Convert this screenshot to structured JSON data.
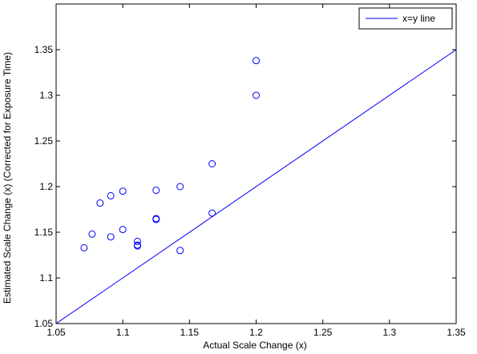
{
  "chart_data": {
    "type": "scatter",
    "title": "",
    "xlabel": "Actual Scale Change (x)",
    "ylabel": "Estimated Scale Change (x) (Corrected for Exposure Time)",
    "xlim": [
      1.05,
      1.35
    ],
    "ylim": [
      1.05,
      1.4
    ],
    "xticks": [
      "1.05",
      "1.1",
      "1.15",
      "1.2",
      "1.25",
      "1.3",
      "1.35"
    ],
    "yticks": [
      "1.05",
      "1.1",
      "1.15",
      "1.2",
      "1.25",
      "1.3",
      "1.35"
    ],
    "grid": false,
    "legend_position": "top-right",
    "series": [
      {
        "name": "",
        "kind": "scatter",
        "marker": "circle-open",
        "color": "#0000ff",
        "points": [
          [
            1.071,
            1.133
          ],
          [
            1.077,
            1.148
          ],
          [
            1.083,
            1.182
          ],
          [
            1.091,
            1.19
          ],
          [
            1.091,
            1.145
          ],
          [
            1.1,
            1.195
          ],
          [
            1.1,
            1.153
          ],
          [
            1.111,
            1.14
          ],
          [
            1.111,
            1.136
          ],
          [
            1.111,
            1.135
          ],
          [
            1.125,
            1.196
          ],
          [
            1.125,
            1.165
          ],
          [
            1.125,
            1.164
          ],
          [
            1.143,
            1.2
          ],
          [
            1.143,
            1.13
          ],
          [
            1.167,
            1.225
          ],
          [
            1.167,
            1.171
          ],
          [
            1.2,
            1.338
          ],
          [
            1.2,
            1.3
          ]
        ]
      },
      {
        "name": "x=y line",
        "kind": "line",
        "color": "#0000ff",
        "points": [
          [
            1.05,
            1.05
          ],
          [
            1.35,
            1.35
          ]
        ]
      }
    ]
  }
}
